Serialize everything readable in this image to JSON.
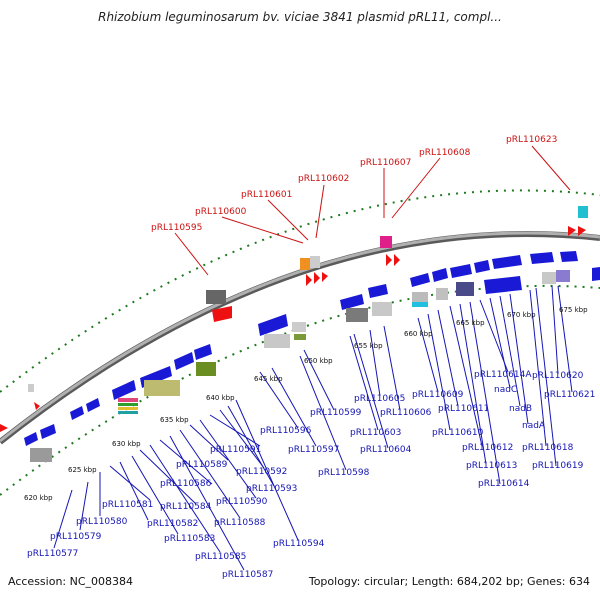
{
  "title": "Rhizobium leguminosarum bv. viciae 3841 plasmid pRL11, compl...",
  "footer": {
    "accession": "Accession: NC_008384",
    "summary": "Topology: circular; Length: 684,202 bp; Genes: 634"
  },
  "colors": {
    "backbone": "#8a8a8a",
    "forward_gene": "#1a1ad6",
    "leader_blue": "#1515b5",
    "leader_red": "#cc1111",
    "tick_green": "#1f7a1f"
  },
  "ticks": [
    "620 kbp",
    "625 kbp",
    "630 kbp",
    "635 kbp",
    "640 kbp",
    "645 kbp",
    "650 kbp",
    "655 kbp",
    "660 kbp",
    "665 kbp",
    "670 kbp",
    "675 kbp"
  ],
  "outer_labels": [
    "pRL110595",
    "pRL110600",
    "pRL110601",
    "pRL110602",
    "pRL110607",
    "pRL110608",
    "pRL110623"
  ],
  "inner_labels": [
    "pRL110577",
    "pRL110579",
    "pRL110580",
    "pRL110581",
    "pRL110582",
    "pRL110583",
    "pRL110584",
    "pRL110585",
    "pRL110586",
    "pRL110587",
    "pRL110588",
    "pRL110589",
    "pRL110590",
    "pRL110591",
    "pRL110592",
    "pRL110593",
    "pRL110594",
    "pRL110596",
    "pRL110597",
    "pRL110598",
    "pRL110599",
    "pRL110603",
    "pRL110604",
    "pRL110605",
    "pRL110606",
    "pRL110609",
    "pRL110610",
    "pRL110611",
    "pRL110612",
    "pRL110613",
    "pRL110614",
    "pRL110614A",
    "nadC",
    "nadB",
    "nadA",
    "pRL110618",
    "pRL110619",
    "pRL110620",
    "pRL110621"
  ]
}
